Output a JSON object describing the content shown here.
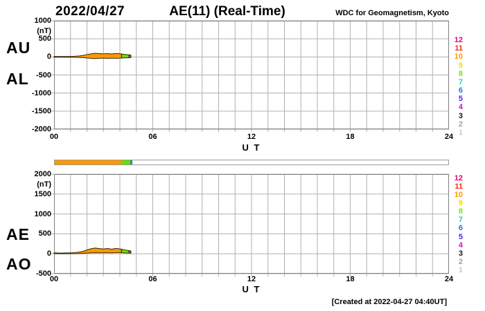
{
  "header": {
    "date": "2022/04/27",
    "title": "AE(11) (Real-Time)",
    "org": "WDC for Geomagnetism, Kyoto"
  },
  "footer": {
    "created": "[Created at 2022-04-27 04:40UT]"
  },
  "axis": {
    "unit": "(nT)",
    "x_label": "U T",
    "x_ticks": [
      "00",
      "06",
      "12",
      "18",
      "24"
    ]
  },
  "colors": {
    "grid": "#B0B0B0",
    "frame": "#808080",
    "band_outline": "#33230A",
    "bar_border": "#999999"
  },
  "legend": {
    "items": [
      {
        "label": "12",
        "color": "#E60073"
      },
      {
        "label": "11",
        "color": "#FF2800"
      },
      {
        "label": "10",
        "color": "#FF9900"
      },
      {
        "label": "9",
        "color": "#F0DC00"
      },
      {
        "label": "8",
        "color": "#7CE600"
      },
      {
        "label": "7",
        "color": "#00DCB4"
      },
      {
        "label": "6",
        "color": "#2078E6"
      },
      {
        "label": "5",
        "color": "#4628E6"
      },
      {
        "label": "4",
        "color": "#E600E6"
      },
      {
        "label": "3",
        "color": "#141414"
      },
      {
        "label": "2",
        "color": "#A0A0A0"
      },
      {
        "label": "1",
        "color": "#C8C8C8"
      }
    ]
  },
  "status_bar": {
    "xlim": [
      0,
      24
    ],
    "segments": [
      {
        "from": 0,
        "to": 4.08,
        "color": "#FF9900"
      },
      {
        "from": 4.08,
        "to": 4.6,
        "color": "#64E100"
      },
      {
        "from": 4.6,
        "to": 4.72,
        "color": "#3A85A0"
      }
    ]
  },
  "chart_data": [
    {
      "type": "area",
      "name": "AU / AL panel",
      "left_labels": [
        "AU",
        "AL"
      ],
      "ylim": [
        -2000,
        1000
      ],
      "ytick_step": 500,
      "yticks": [
        "1000",
        "500",
        "0",
        "-500",
        "-1000",
        "-1500",
        "-2000"
      ],
      "xlim": [
        0,
        24
      ],
      "xlabel": "U T",
      "x": [
        0,
        0.25,
        0.5,
        0.75,
        1,
        1.25,
        1.5,
        1.75,
        2,
        2.25,
        2.5,
        2.75,
        3,
        3.25,
        3.5,
        3.75,
        4,
        4.25,
        4.45,
        4.6,
        4.67
      ],
      "series": [
        {
          "name": "AU",
          "values": [
            15,
            12,
            10,
            12,
            14,
            18,
            25,
            40,
            65,
            85,
            100,
            92,
            85,
            92,
            80,
            95,
            88,
            70,
            62,
            55,
            50
          ]
        },
        {
          "name": "AL",
          "values": [
            -10,
            -8,
            -8,
            -10,
            -10,
            -12,
            -15,
            -20,
            -30,
            -42,
            -45,
            -40,
            -35,
            -42,
            -35,
            -40,
            -35,
            -30,
            -25,
            -22,
            -20
          ]
        }
      ],
      "segments": [
        {
          "from": 0,
          "to": 4.1,
          "color": "#FF9900"
        },
        {
          "from": 4.1,
          "to": 4.55,
          "color": "#64E100"
        },
        {
          "from": 4.55,
          "to": 4.67,
          "color": "#3A85A0"
        }
      ]
    },
    {
      "type": "area",
      "name": "AE / AO panel",
      "left_labels": [
        "AE",
        "AO"
      ],
      "ylim": [
        -500,
        2000
      ],
      "ytick_step": 500,
      "yticks": [
        "2000",
        "1500",
        "1000",
        "500",
        "0",
        "-500"
      ],
      "xlim": [
        0,
        24
      ],
      "xlabel": "U T",
      "x": [
        0,
        0.25,
        0.5,
        0.75,
        1,
        1.25,
        1.5,
        1.75,
        2,
        2.25,
        2.5,
        2.75,
        3,
        3.25,
        3.5,
        3.75,
        4,
        4.25,
        4.45,
        4.6,
        4.67
      ],
      "series": [
        {
          "name": "AE",
          "values": [
            25,
            20,
            18,
            22,
            24,
            30,
            40,
            60,
            95,
            127,
            145,
            132,
            120,
            134,
            115,
            135,
            123,
            100,
            87,
            77,
            70
          ]
        },
        {
          "name": "AO",
          "values": [
            3,
            2,
            1,
            1,
            2,
            3,
            5,
            10,
            18,
            22,
            28,
            26,
            25,
            25,
            23,
            28,
            27,
            20,
            19,
            17,
            15
          ]
        }
      ],
      "segments": [
        {
          "from": 0,
          "to": 4.1,
          "color": "#FF9900"
        },
        {
          "from": 4.1,
          "to": 4.55,
          "color": "#64E100"
        },
        {
          "from": 4.55,
          "to": 4.67,
          "color": "#3A85A0"
        }
      ]
    }
  ]
}
